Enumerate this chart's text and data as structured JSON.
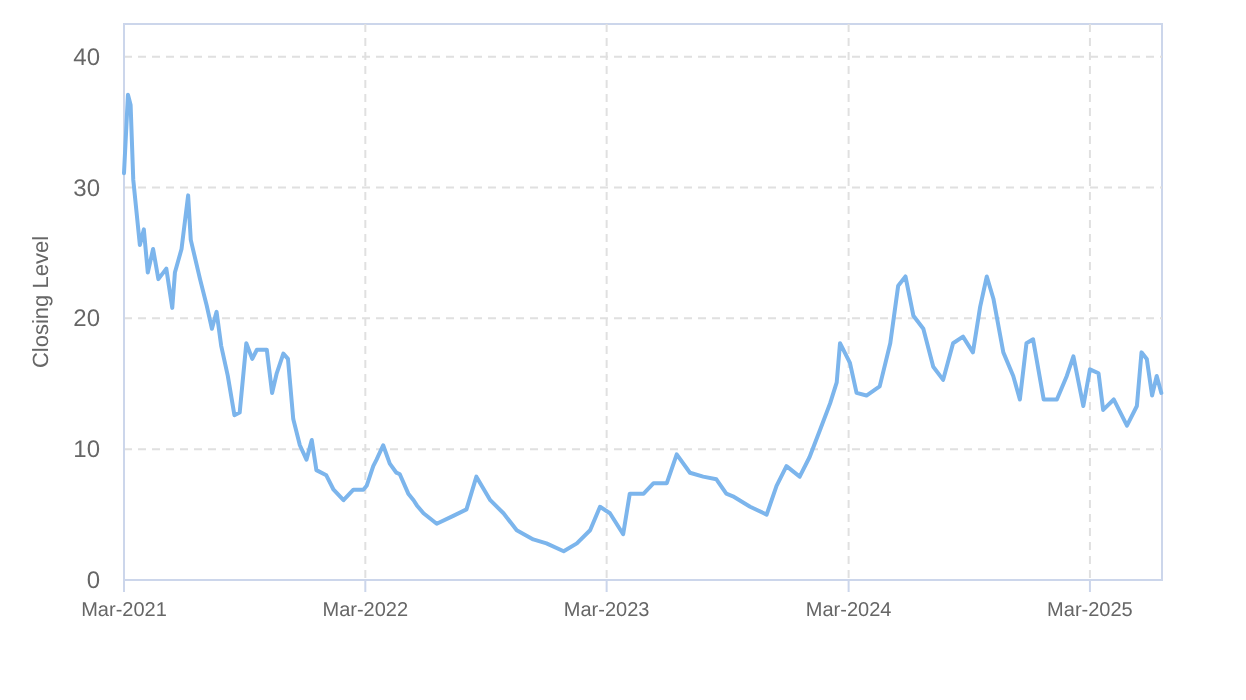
{
  "chart_data": {
    "type": "line",
    "ylabel": "Closing Level",
    "grid": true,
    "marker": "none",
    "line_style": "solid",
    "xlim": [
      "2021-03-01",
      "2025-06-18"
    ],
    "ylim": [
      0,
      42.5
    ],
    "yticks": [
      0,
      10,
      20,
      30,
      40
    ],
    "xticks": [
      {
        "value": "2021-03-01",
        "label": "Mar-2021"
      },
      {
        "value": "2022-03-01",
        "label": "Mar-2022"
      },
      {
        "value": "2023-03-01",
        "label": "Mar-2023"
      },
      {
        "value": "2024-03-01",
        "label": "Mar-2024"
      },
      {
        "value": "2025-03-01",
        "label": "Mar-2025"
      }
    ],
    "series": [
      {
        "color": "#7cb5ec",
        "x": [
          "2021-03-01",
          "2021-03-07",
          "2021-03-11",
          "2021-03-15",
          "2021-03-25",
          "2021-03-31",
          "2021-04-06",
          "2021-04-14",
          "2021-04-22",
          "2021-05-04",
          "2021-05-13",
          "2021-05-17",
          "2021-05-27",
          "2021-06-06",
          "2021-06-10",
          "2021-06-24",
          "2021-07-04",
          "2021-07-12",
          "2021-07-19",
          "2021-07-26",
          "2021-08-05",
          "2021-08-15",
          "2021-08-23",
          "2021-09-02",
          "2021-09-11",
          "2021-09-18",
          "2021-10-03",
          "2021-10-11",
          "2021-10-18",
          "2021-10-28",
          "2021-11-04",
          "2021-11-12",
          "2021-11-22",
          "2021-12-02",
          "2021-12-10",
          "2021-12-17",
          "2022-01-01",
          "2022-01-12",
          "2022-01-27",
          "2022-02-11",
          "2022-02-26",
          "2022-03-03",
          "2022-03-13",
          "2022-03-18",
          "2022-03-28",
          "2022-04-07",
          "2022-04-17",
          "2022-04-22",
          "2022-05-05",
          "2022-05-13",
          "2022-05-18",
          "2022-05-28",
          "2022-06-17",
          "2022-07-12",
          "2022-08-01",
          "2022-08-16",
          "2022-09-06",
          "2022-09-26",
          "2022-10-16",
          "2022-11-10",
          "2022-11-30",
          "2022-12-26",
          "2023-01-15",
          "2023-02-04",
          "2023-02-19",
          "2023-03-06",
          "2023-03-26",
          "2023-04-05",
          "2023-04-26",
          "2023-05-11",
          "2023-05-31",
          "2023-06-15",
          "2023-07-05",
          "2023-07-25",
          "2023-08-14",
          "2023-08-29",
          "2023-09-08",
          "2023-10-04",
          "2023-10-29",
          "2023-11-13",
          "2023-11-28",
          "2023-12-18",
          "2024-01-02",
          "2024-01-18",
          "2024-02-02",
          "2024-02-12",
          "2024-02-17",
          "2024-03-03",
          "2024-03-13",
          "2024-03-28",
          "2024-04-17",
          "2024-05-03",
          "2024-05-15",
          "2024-05-26",
          "2024-06-07",
          "2024-06-22",
          "2024-07-07",
          "2024-07-22",
          "2024-08-06",
          "2024-08-21",
          "2024-09-05",
          "2024-09-16",
          "2024-09-26",
          "2024-10-06",
          "2024-10-21",
          "2024-11-05",
          "2024-11-15",
          "2024-11-25",
          "2024-12-05",
          "2024-12-21",
          "2025-01-10",
          "2025-01-25",
          "2025-02-04",
          "2025-02-19",
          "2025-03-01",
          "2025-03-14",
          "2025-03-21",
          "2025-04-06",
          "2025-04-26",
          "2025-05-11",
          "2025-05-18",
          "2025-05-26",
          "2025-06-03",
          "2025-06-10",
          "2025-06-17"
        ],
        "values": [
          31.1,
          37.1,
          36.3,
          30.6,
          25.6,
          26.8,
          23.5,
          25.3,
          23,
          23.8,
          20.8,
          23.5,
          25.3,
          29.4,
          26,
          23,
          21,
          19.2,
          20.5,
          17.9,
          15.6,
          12.6,
          12.8,
          18.1,
          16.9,
          17.6,
          17.6,
          14.3,
          15.8,
          17.3,
          16.9,
          12.3,
          10.3,
          9.2,
          10.7,
          8.4,
          8,
          6.9,
          6.1,
          6.9,
          6.9,
          7.2,
          8.7,
          9.2,
          10.3,
          8.9,
          8.2,
          8.1,
          6.6,
          6.1,
          5.7,
          5.1,
          4.3,
          4.9,
          5.4,
          7.9,
          6.1,
          5.1,
          3.8,
          3.1,
          2.8,
          2.2,
          2.8,
          3.8,
          5.6,
          5.1,
          3.5,
          6.6,
          6.6,
          7.4,
          7.4,
          9.6,
          8.2,
          7.9,
          7.7,
          6.6,
          6.4,
          5.6,
          5,
          7.2,
          8.7,
          7.9,
          9.4,
          11.5,
          13.5,
          15.1,
          18.1,
          16.6,
          14.3,
          14.1,
          14.8,
          18.1,
          22.5,
          23.2,
          20.2,
          19.2,
          16.3,
          15.3,
          18.1,
          18.6,
          17.4,
          20.9,
          23.2,
          21.5,
          17.4,
          15.6,
          13.8,
          18.1,
          18.4,
          13.8,
          13.8,
          15.6,
          17.1,
          13.3,
          16.1,
          15.8,
          13,
          13.8,
          11.8,
          13.3,
          17.4,
          16.9,
          14.1,
          15.6,
          14.3
        ]
      }
    ]
  }
}
